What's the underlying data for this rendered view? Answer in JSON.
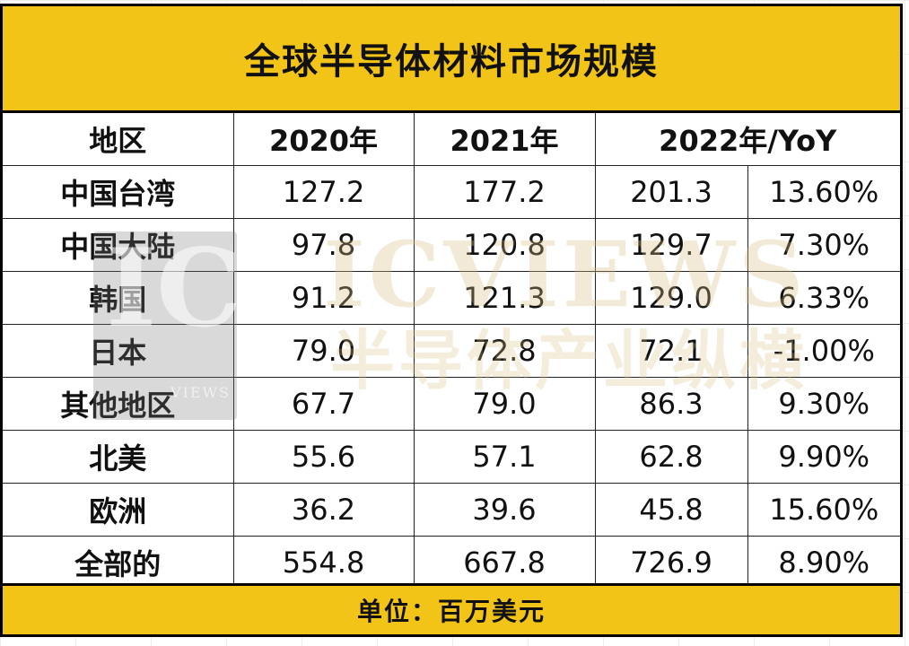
{
  "title": "全球半导体材料市场规模",
  "footer": "单位：百万美元",
  "watermark": {
    "logo_text": "IC",
    "logo_sub": "VIEWS",
    "brand": "ICVIEWS",
    "brand_cn": "半导体产业纵横"
  },
  "colors": {
    "band": "#f2c418",
    "border": "#000000",
    "text": "#111111"
  },
  "chart_data": {
    "type": "table",
    "title": "全球半导体材料市场规模",
    "unit": "单位：百万美元",
    "headers": [
      "地区",
      "2020年",
      "2021年",
      "2022年/YoY"
    ],
    "rows": [
      {
        "region": "中国台湾",
        "y2020": "127.2",
        "y2021": "177.2",
        "y2022": "201.3",
        "yoy": "13.60%"
      },
      {
        "region": "中国大陆",
        "y2020": "97.8",
        "y2021": "120.8",
        "y2022": "129.7",
        "yoy": "7.30%"
      },
      {
        "region": "韩国",
        "y2020": "91.2",
        "y2021": "121.3",
        "y2022": "129.0",
        "yoy": "6.33%"
      },
      {
        "region": "日本",
        "y2020": "79.0",
        "y2021": "72.8",
        "y2022": "72.1",
        "yoy": "-1.00%"
      },
      {
        "region": "其他地区",
        "y2020": "67.7",
        "y2021": "79.0",
        "y2022": "86.3",
        "yoy": "9.30%"
      },
      {
        "region": "北美",
        "y2020": "55.6",
        "y2021": "57.1",
        "y2022": "62.8",
        "yoy": "9.90%"
      },
      {
        "region": "欧洲",
        "y2020": "36.2",
        "y2021": "39.6",
        "y2022": "45.8",
        "yoy": "15.60%"
      },
      {
        "region": "全部的",
        "y2020": "554.8",
        "y2021": "667.8",
        "y2022": "726.9",
        "yoy": "8.90%"
      }
    ]
  }
}
